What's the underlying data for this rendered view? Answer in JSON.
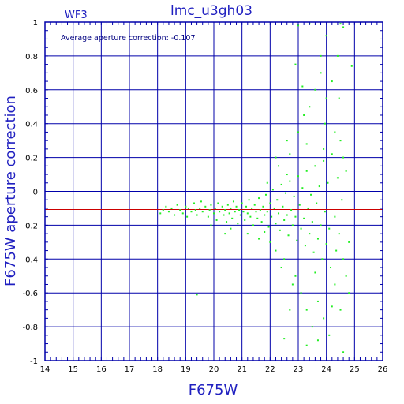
{
  "chart_data": {
    "type": "scatter",
    "title": "lmc_u3gh03",
    "panel_label": "WF3",
    "annotation": "Average aperture correction: -0.107",
    "xlabel": "F675W",
    "ylabel": "F675W aperture correction",
    "xlim": [
      14,
      26
    ],
    "ylim": [
      -1,
      1
    ],
    "xticks": [
      "14",
      "15",
      "16",
      "17",
      "18",
      "19",
      "20",
      "21",
      "22",
      "23",
      "24",
      "25",
      "26"
    ],
    "yticks": [
      "-1",
      "-0.8",
      "-0.6",
      "-0.4",
      "-0.2",
      "0",
      "0.2",
      "0.4",
      "0.6",
      "0.8",
      "1"
    ],
    "grid": true,
    "reference_line": {
      "y": -0.107,
      "color": "#cc0000"
    },
    "point_color": "#22ee22",
    "axis_color": "#0000aa",
    "text_color": "#2020c0",
    "points": [
      [
        18.1,
        -0.13
      ],
      [
        18.2,
        -0.11
      ],
      [
        18.3,
        -0.09
      ],
      [
        18.4,
        -0.12
      ],
      [
        18.5,
        -0.1
      ],
      [
        18.6,
        -0.14
      ],
      [
        18.7,
        -0.08
      ],
      [
        18.8,
        -0.11
      ],
      [
        18.9,
        -0.13
      ],
      [
        19.0,
        -0.09
      ],
      [
        19.05,
        -0.15
      ],
      [
        19.1,
        -0.1
      ],
      [
        19.2,
        -0.12
      ],
      [
        19.3,
        -0.07
      ],
      [
        19.35,
        -0.11
      ],
      [
        19.4,
        -0.14
      ],
      [
        19.5,
        -0.1
      ],
      [
        19.55,
        -0.06
      ],
      [
        19.6,
        -0.12
      ],
      [
        19.7,
        -0.09
      ],
      [
        19.8,
        -0.15
      ],
      [
        19.85,
        -0.11
      ],
      [
        19.9,
        -0.08
      ],
      [
        20.0,
        -0.13
      ],
      [
        20.05,
        -0.1
      ],
      [
        20.1,
        -0.17
      ],
      [
        20.15,
        -0.07
      ],
      [
        20.2,
        -0.12
      ],
      [
        20.3,
        -0.09
      ],
      [
        20.35,
        -0.14
      ],
      [
        20.4,
        -0.11
      ],
      [
        20.45,
        -0.18
      ],
      [
        20.5,
        -0.08
      ],
      [
        20.55,
        -0.13
      ],
      [
        20.6,
        -0.1
      ],
      [
        20.65,
        -0.16
      ],
      [
        20.7,
        -0.06
      ],
      [
        20.75,
        -0.12
      ],
      [
        20.8,
        -0.09
      ],
      [
        20.85,
        -0.19
      ],
      [
        20.9,
        -0.11
      ],
      [
        20.95,
        -0.14
      ],
      [
        21.0,
        -0.07
      ],
      [
        21.05,
        -0.12
      ],
      [
        21.1,
        -0.17
      ],
      [
        21.15,
        -0.09
      ],
      [
        21.2,
        -0.13
      ],
      [
        21.25,
        -0.05
      ],
      [
        21.3,
        -0.15
      ],
      [
        21.35,
        -0.1
      ],
      [
        21.4,
        -0.2
      ],
      [
        21.45,
        -0.08
      ],
      [
        21.5,
        -0.12
      ],
      [
        21.55,
        -0.16
      ],
      [
        21.6,
        -0.04
      ],
      [
        21.65,
        -0.11
      ],
      [
        21.7,
        -0.18
      ],
      [
        21.75,
        -0.09
      ],
      [
        21.8,
        -0.14
      ],
      [
        21.85,
        -0.02
      ],
      [
        21.9,
        -0.12
      ],
      [
        21.95,
        -0.21
      ],
      [
        22.0,
        -0.07
      ],
      [
        22.05,
        -0.15
      ],
      [
        22.1,
        0.01
      ],
      [
        22.15,
        -0.1
      ],
      [
        22.2,
        -0.19
      ],
      [
        22.25,
        -0.05
      ],
      [
        22.3,
        -0.13
      ],
      [
        22.35,
        -0.23
      ],
      [
        22.4,
        0.04
      ],
      [
        22.45,
        -0.09
      ],
      [
        22.5,
        -0.17
      ],
      [
        22.55,
        -0.01
      ],
      [
        22.6,
        -0.14
      ],
      [
        22.65,
        -0.26
      ],
      [
        22.7,
        0.06
      ],
      [
        22.75,
        -0.11
      ],
      [
        22.8,
        -0.2
      ],
      [
        22.85,
        -0.03
      ],
      [
        22.9,
        -0.15
      ],
      [
        22.95,
        -0.29
      ],
      [
        23.0,
        0.09
      ],
      [
        23.05,
        -0.08
      ],
      [
        23.1,
        -0.22
      ],
      [
        23.15,
        0.02
      ],
      [
        23.2,
        -0.16
      ],
      [
        23.25,
        -0.32
      ],
      [
        23.3,
        0.12
      ],
      [
        23.35,
        -0.1
      ],
      [
        23.4,
        -0.25
      ],
      [
        23.45,
        -0.02
      ],
      [
        23.5,
        -0.18
      ],
      [
        23.55,
        -0.36
      ],
      [
        23.6,
        0.15
      ],
      [
        23.65,
        -0.07
      ],
      [
        23.7,
        -0.28
      ],
      [
        23.75,
        0.03
      ],
      [
        23.8,
        -0.2
      ],
      [
        23.85,
        -0.4
      ],
      [
        23.9,
        0.18
      ],
      [
        23.95,
        -0.12
      ],
      [
        24.0,
        -0.31
      ],
      [
        24.05,
        0.05
      ],
      [
        24.1,
        -0.22
      ],
      [
        24.15,
        -0.45
      ],
      [
        24.2,
        0.22
      ],
      [
        24.3,
        -0.15
      ],
      [
        24.35,
        -0.35
      ],
      [
        24.4,
        0.08
      ],
      [
        24.45,
        -0.25
      ],
      [
        24.5,
        0.3
      ],
      [
        24.55,
        -0.05
      ],
      [
        24.6,
        -0.4
      ],
      [
        24.7,
        0.12
      ],
      [
        24.8,
        -0.3
      ],
      [
        22.0,
        -0.3
      ],
      [
        22.2,
        0.2
      ],
      [
        22.4,
        -0.45
      ],
      [
        22.6,
        0.3
      ],
      [
        22.8,
        -0.55
      ],
      [
        23.0,
        0.35
      ],
      [
        23.1,
        -0.6
      ],
      [
        23.2,
        0.45
      ],
      [
        23.3,
        -0.7
      ],
      [
        23.4,
        0.5
      ],
      [
        23.5,
        -0.8
      ],
      [
        23.6,
        0.6
      ],
      [
        23.7,
        -0.65
      ],
      [
        23.8,
        0.7
      ],
      [
        23.9,
        -0.75
      ],
      [
        24.0,
        0.55
      ],
      [
        24.1,
        -0.85
      ],
      [
        24.2,
        0.65
      ],
      [
        24.3,
        -0.55
      ],
      [
        24.4,
        0.8
      ],
      [
        22.9,
        0.75
      ],
      [
        23.0,
        0.98
      ],
      [
        23.4,
        0.99
      ],
      [
        23.8,
        0.8
      ],
      [
        24.0,
        0.92
      ],
      [
        24.5,
        0.99
      ],
      [
        24.6,
        0.97
      ],
      [
        24.9,
        0.74
      ],
      [
        24.6,
        -0.95
      ],
      [
        22.5,
        -0.87
      ],
      [
        23.3,
        -0.91
      ],
      [
        23.7,
        -0.88
      ],
      [
        19.4,
        -0.61
      ],
      [
        23.95,
        0.4
      ],
      [
        24.45,
        0.55
      ],
      [
        22.7,
        -0.7
      ],
      [
        23.15,
        0.62
      ],
      [
        24.2,
        -0.68
      ],
      [
        21.8,
        -0.24
      ],
      [
        21.9,
        0.05
      ],
      [
        22.3,
        0.15
      ],
      [
        22.5,
        -0.4
      ],
      [
        22.9,
        -0.5
      ],
      [
        23.6,
        -0.48
      ],
      [
        24.7,
        -0.5
      ],
      [
        24.8,
        -0.6
      ],
      [
        24.5,
        -0.7
      ],
      [
        22.2,
        -0.35
      ],
      [
        21.6,
        -0.28
      ],
      [
        21.2,
        -0.25
      ],
      [
        20.6,
        -0.22
      ],
      [
        20.4,
        -0.25
      ],
      [
        19.9,
        -0.2
      ],
      [
        22.6,
        0.1
      ],
      [
        23.9,
        0.25
      ],
      [
        24.3,
        0.35
      ],
      [
        24.6,
        0.2
      ],
      [
        23.3,
        0.28
      ],
      [
        22.7,
        0.22
      ]
    ]
  }
}
